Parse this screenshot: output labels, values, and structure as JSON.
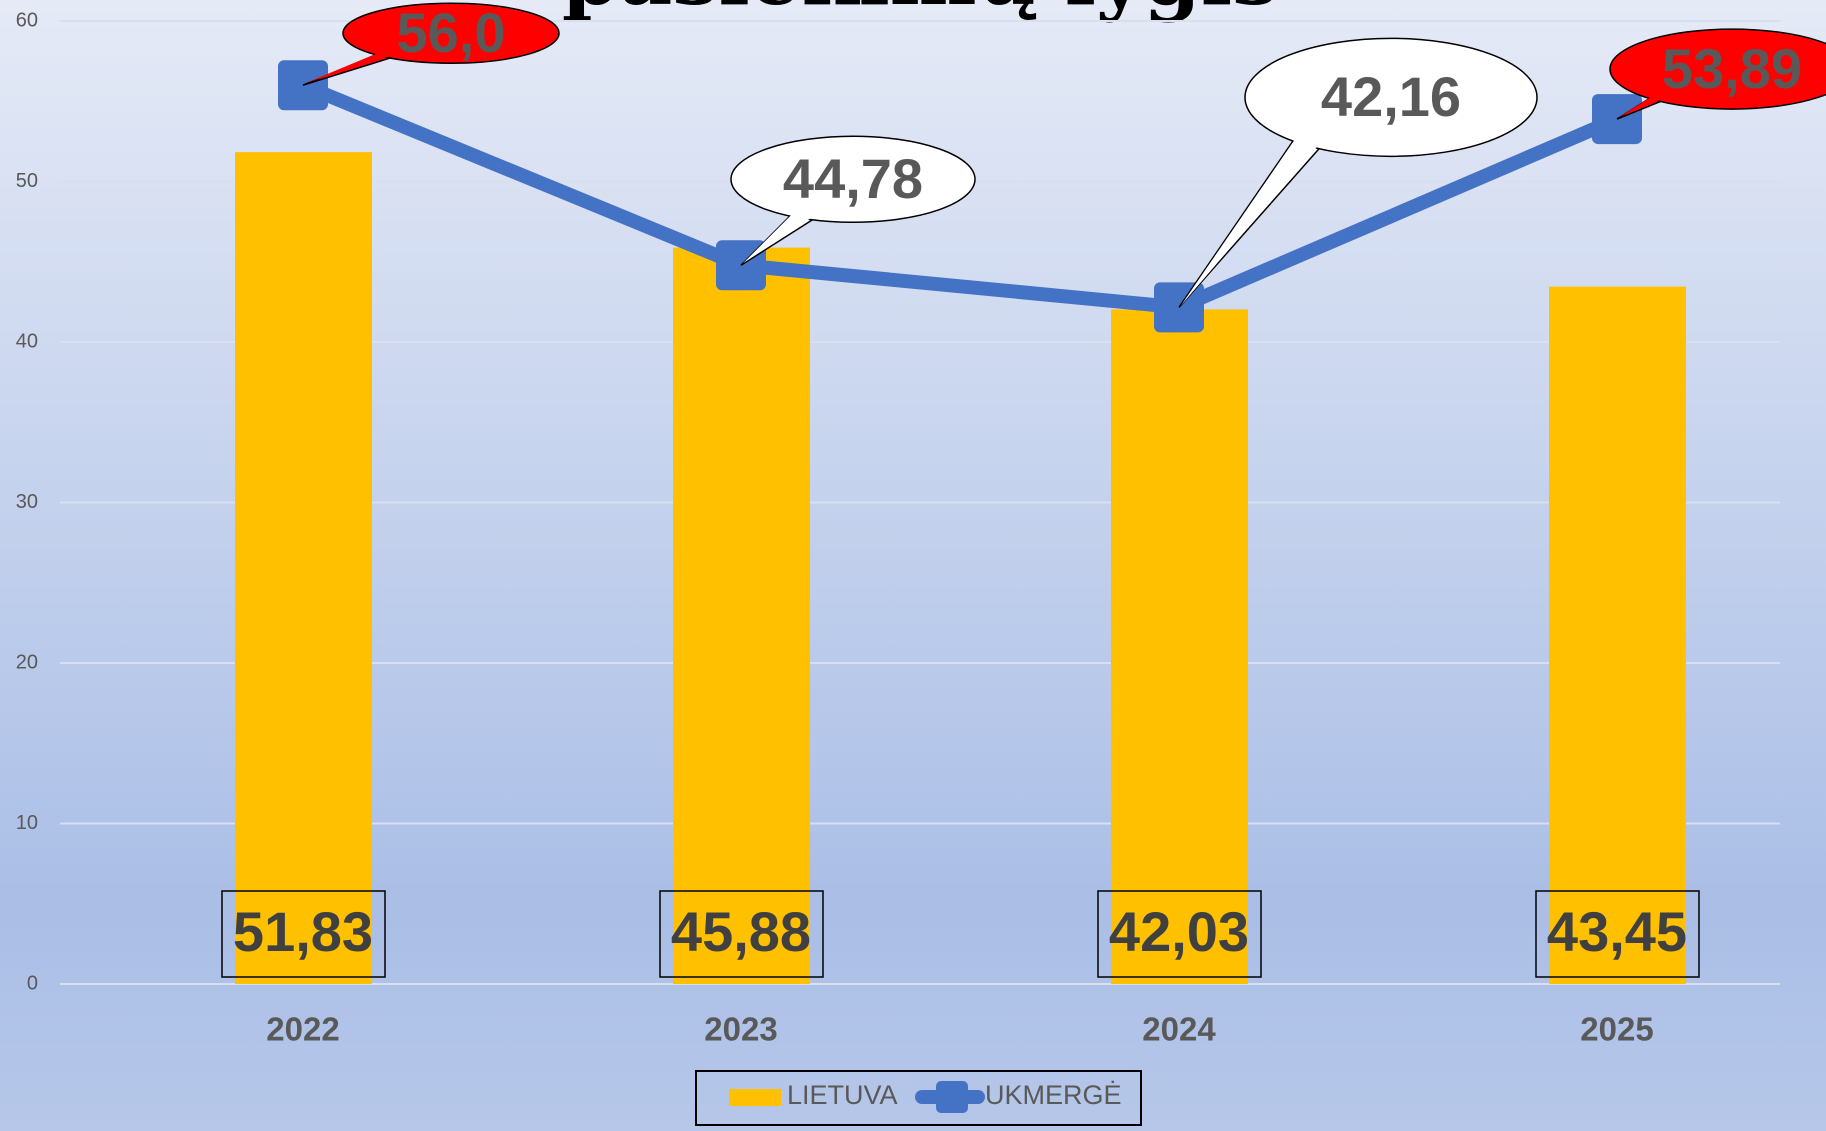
{
  "chart_data": {
    "type": "bar_line",
    "title": "pasiekimų lygis",
    "categories": [
      "2022",
      "2023",
      "2024",
      "2025"
    ],
    "series": [
      {
        "name": "LIETUVA",
        "type": "bar",
        "color": "#ffc000",
        "values": [
          51.83,
          45.88,
          42.03,
          43.45
        ],
        "value_labels": [
          "51,83",
          "45,88",
          "42,03",
          "43,45"
        ]
      },
      {
        "name": "UKMERGĖ",
        "type": "line",
        "color": "#4472c4",
        "values": [
          56.0,
          44.78,
          42.16,
          53.89
        ],
        "value_labels": [
          "56,0",
          "44,78",
          "42,16",
          "53,89"
        ],
        "label_fills": [
          "#ff0000",
          "#ffffff",
          "#ffffff",
          "#ff0000"
        ]
      }
    ],
    "ylim": [
      0,
      60
    ],
    "yticks": [
      0,
      10,
      20,
      30,
      40,
      50,
      60
    ],
    "grid": true,
    "legend": "bottom"
  }
}
